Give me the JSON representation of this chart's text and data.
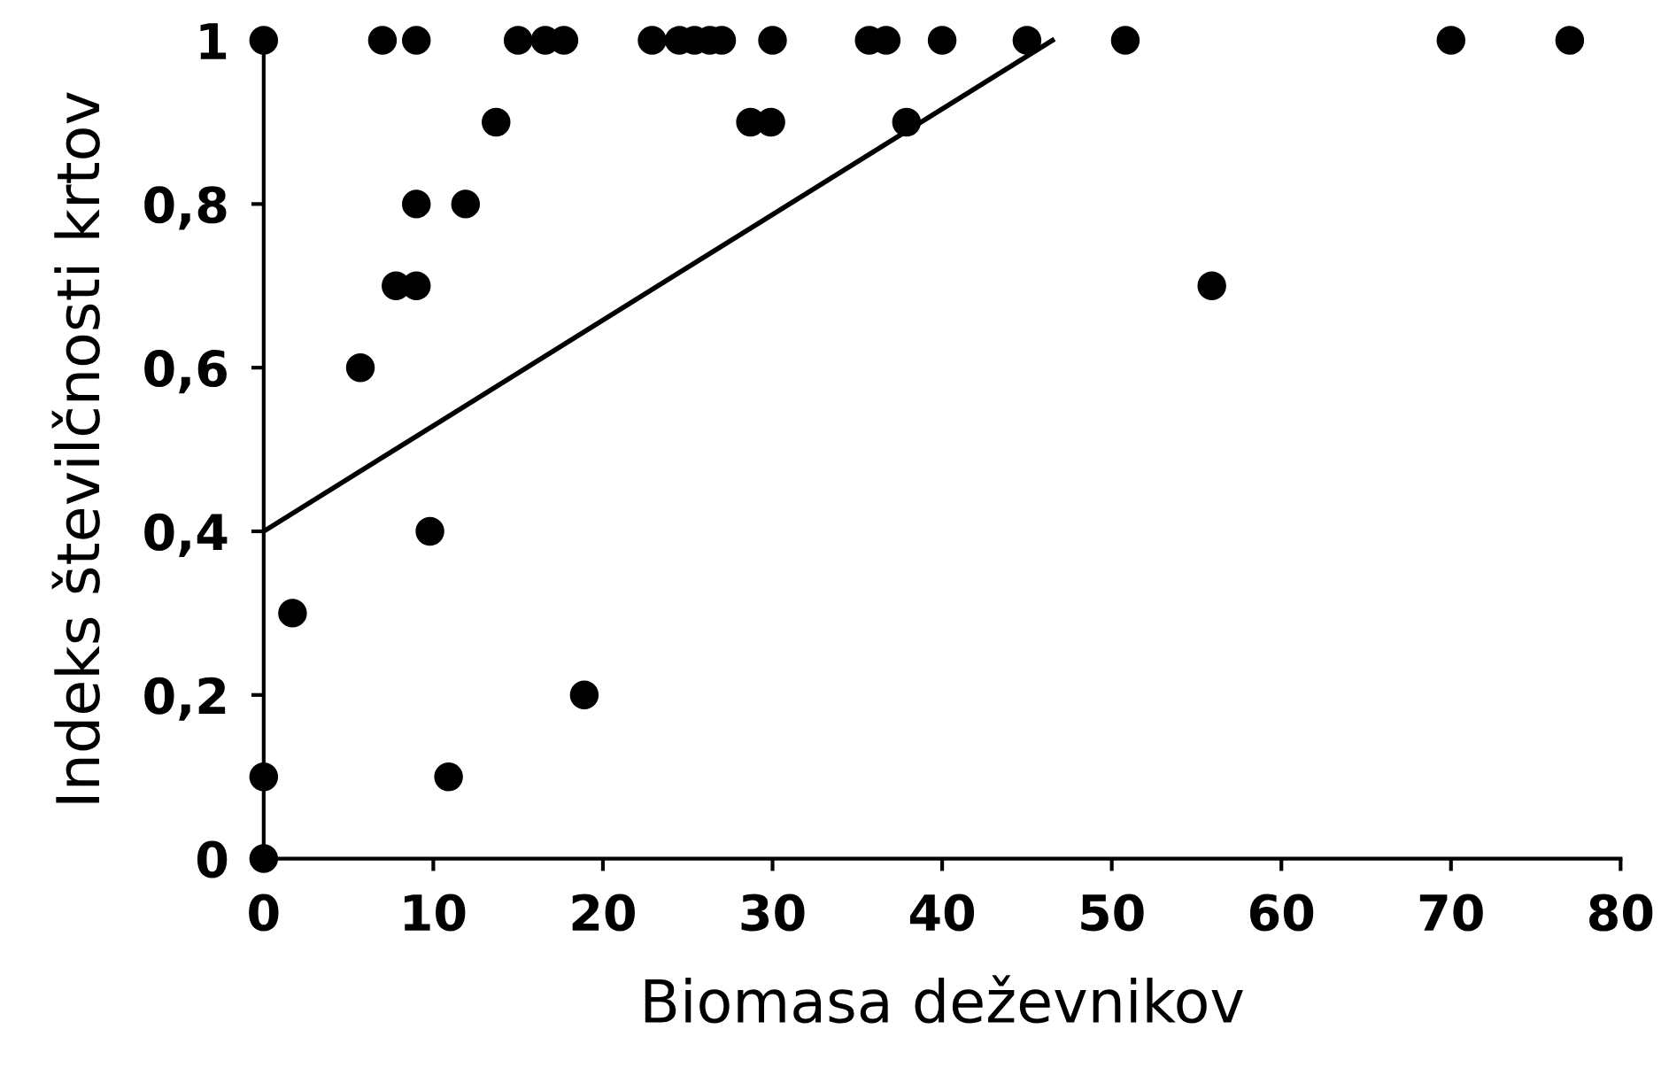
{
  "chart_data": {
    "type": "scatter",
    "xlabel": "Biomasa deževnikov",
    "ylabel": "Indeks številčnosti krtov",
    "xlim": [
      0,
      80
    ],
    "ylim": [
      0,
      1
    ],
    "xticks": [
      0,
      10,
      20,
      30,
      40,
      50,
      60,
      70,
      80
    ],
    "yticks": [
      0,
      {
        "value": 0.2,
        "label": "0,2"
      },
      {
        "value": 0.4,
        "label": "0,4"
      },
      {
        "value": 0.6,
        "label": "0,6"
      },
      {
        "value": 0.8,
        "label": "0,8"
      },
      1
    ],
    "grid": false,
    "legend": false,
    "series": [
      {
        "marker": "circle",
        "color": "#000000",
        "x": [
          0,
          7,
          9,
          15,
          16.6,
          17.7,
          22.9,
          24.5,
          25.4,
          26.3,
          27,
          30,
          35.7,
          36.7,
          40,
          45,
          50.8,
          70,
          77,
          13.7,
          28.7,
          29.9,
          37.9,
          9,
          11.9,
          7.8,
          9,
          5.7,
          9.8,
          1.7,
          18.9,
          0,
          10.9,
          0,
          55.9
        ],
        "values": [
          1,
          1,
          1,
          1,
          1,
          1,
          1,
          1,
          1,
          1,
          1,
          1,
          1,
          1,
          1,
          1,
          1,
          1,
          1,
          0.9,
          0.9,
          0.9,
          0.9,
          0.8,
          0.8,
          0.7,
          0.7,
          0.6,
          0.4,
          0.3,
          0.2,
          0.1,
          0.1,
          0,
          0.7
        ]
      },
      {
        "type": "line",
        "color": "#000000",
        "line_style": "solid",
        "x": [
          0,
          46.5
        ],
        "values": [
          0.4,
          1.0
        ]
      }
    ]
  }
}
